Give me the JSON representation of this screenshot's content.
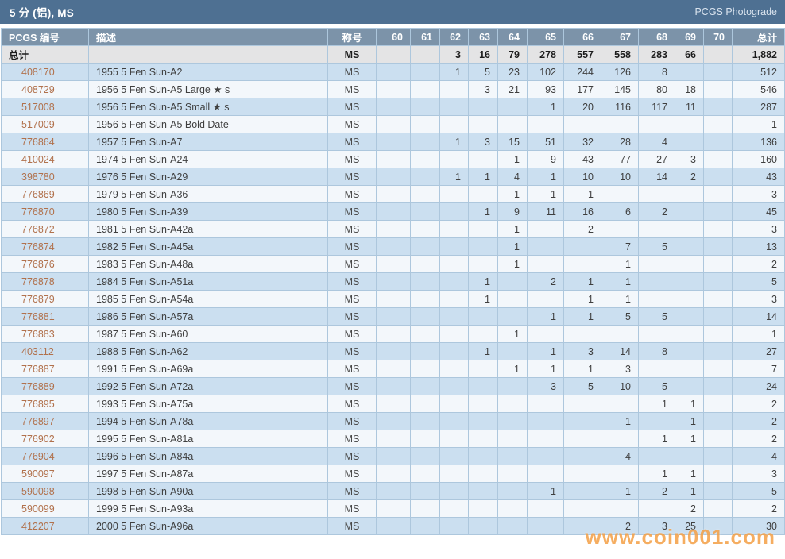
{
  "title_bar": {
    "title": "5 分 (铝), MS",
    "link": "PCGS Photograde"
  },
  "watermark": "www.coin001.com",
  "colors": {
    "title-bg": "#4e7092",
    "header-bg": "#7c93a9",
    "row-odd": "#cbdff0",
    "row-even": "#f3f7fb",
    "totals-bg": "#e4e4e5",
    "grid-border": "#adc7dd",
    "pcgs-link": "#b1714c",
    "watermark": "rgba(243,153,56,0.80)"
  },
  "table": {
    "columns": [
      "PCGS 编号",
      "描述",
      "称号",
      "60",
      "61",
      "62",
      "63",
      "64",
      "65",
      "66",
      "67",
      "68",
      "69",
      "70",
      "总计"
    ],
    "totals": {
      "label": "总计",
      "designation": "MS",
      "grades": [
        "",
        "",
        "3",
        "16",
        "79",
        "278",
        "557",
        "558",
        "283",
        "66",
        ""
      ],
      "total": "1,882"
    },
    "rows": [
      {
        "pcgs": "408170",
        "desc": "1955 5 Fen Sun-A2",
        "designation": "MS",
        "grades": [
          "",
          "",
          "1",
          "5",
          "23",
          "102",
          "244",
          "126",
          "8",
          "",
          ""
        ],
        "total": "512"
      },
      {
        "pcgs": "408729",
        "desc": "1956 5 Fen Sun-A5 Large ★ s",
        "designation": "MS",
        "grades": [
          "",
          "",
          "",
          "3",
          "21",
          "93",
          "177",
          "145",
          "80",
          "18",
          ""
        ],
        "total": "546"
      },
      {
        "pcgs": "517008",
        "desc": "1956 5 Fen Sun-A5 Small ★ s",
        "designation": "MS",
        "grades": [
          "",
          "",
          "",
          "",
          "",
          "1",
          "20",
          "116",
          "117",
          "11",
          ""
        ],
        "total": "287"
      },
      {
        "pcgs": "517009",
        "desc": "1956 5 Fen Sun-A5 Bold Date",
        "designation": "MS",
        "grades": [
          "",
          "",
          "",
          "",
          "",
          "",
          "",
          "",
          "",
          "",
          ""
        ],
        "total": "1"
      },
      {
        "pcgs": "776864",
        "desc": "1957 5 Fen Sun-A7",
        "designation": "MS",
        "grades": [
          "",
          "",
          "1",
          "3",
          "15",
          "51",
          "32",
          "28",
          "4",
          "",
          ""
        ],
        "total": "136"
      },
      {
        "pcgs": "410024",
        "desc": "1974 5 Fen Sun-A24",
        "designation": "MS",
        "grades": [
          "",
          "",
          "",
          "",
          "1",
          "9",
          "43",
          "77",
          "27",
          "3",
          ""
        ],
        "total": "160"
      },
      {
        "pcgs": "398780",
        "desc": "1976 5 Fen Sun-A29",
        "designation": "MS",
        "grades": [
          "",
          "",
          "1",
          "1",
          "4",
          "1",
          "10",
          "10",
          "14",
          "2",
          ""
        ],
        "total": "43"
      },
      {
        "pcgs": "776869",
        "desc": "1979 5 Fen Sun-A36",
        "designation": "MS",
        "grades": [
          "",
          "",
          "",
          "",
          "1",
          "1",
          "1",
          "",
          "",
          "",
          ""
        ],
        "total": "3"
      },
      {
        "pcgs": "776870",
        "desc": "1980 5 Fen Sun-A39",
        "designation": "MS",
        "grades": [
          "",
          "",
          "",
          "1",
          "9",
          "11",
          "16",
          "6",
          "2",
          "",
          ""
        ],
        "total": "45"
      },
      {
        "pcgs": "776872",
        "desc": "1981 5 Fen Sun-A42a",
        "designation": "MS",
        "grades": [
          "",
          "",
          "",
          "",
          "1",
          "",
          "2",
          "",
          "",
          "",
          ""
        ],
        "total": "3"
      },
      {
        "pcgs": "776874",
        "desc": "1982 5 Fen Sun-A45a",
        "designation": "MS",
        "grades": [
          "",
          "",
          "",
          "",
          "1",
          "",
          "",
          "7",
          "5",
          "",
          ""
        ],
        "total": "13"
      },
      {
        "pcgs": "776876",
        "desc": "1983 5 Fen Sun-A48a",
        "designation": "MS",
        "grades": [
          "",
          "",
          "",
          "",
          "1",
          "",
          "",
          "1",
          "",
          "",
          ""
        ],
        "total": "2"
      },
      {
        "pcgs": "776878",
        "desc": "1984 5 Fen Sun-A51a",
        "designation": "MS",
        "grades": [
          "",
          "",
          "",
          "1",
          "",
          "2",
          "1",
          "1",
          "",
          "",
          ""
        ],
        "total": "5"
      },
      {
        "pcgs": "776879",
        "desc": "1985 5 Fen Sun-A54a",
        "designation": "MS",
        "grades": [
          "",
          "",
          "",
          "1",
          "",
          "",
          "1",
          "1",
          "",
          "",
          ""
        ],
        "total": "3"
      },
      {
        "pcgs": "776881",
        "desc": "1986 5 Fen Sun-A57a",
        "designation": "MS",
        "grades": [
          "",
          "",
          "",
          "",
          "",
          "1",
          "1",
          "5",
          "5",
          "",
          ""
        ],
        "total": "14"
      },
      {
        "pcgs": "776883",
        "desc": "1987 5 Fen Sun-A60",
        "designation": "MS",
        "grades": [
          "",
          "",
          "",
          "",
          "1",
          "",
          "",
          "",
          "",
          "",
          ""
        ],
        "total": "1"
      },
      {
        "pcgs": "403112",
        "desc": "1988 5 Fen Sun-A62",
        "designation": "MS",
        "grades": [
          "",
          "",
          "",
          "1",
          "",
          "1",
          "3",
          "14",
          "8",
          "",
          ""
        ],
        "total": "27"
      },
      {
        "pcgs": "776887",
        "desc": "1991 5 Fen Sun-A69a",
        "designation": "MS",
        "grades": [
          "",
          "",
          "",
          "",
          "1",
          "1",
          "1",
          "3",
          "",
          "",
          ""
        ],
        "total": "7"
      },
      {
        "pcgs": "776889",
        "desc": "1992 5 Fen Sun-A72a",
        "designation": "MS",
        "grades": [
          "",
          "",
          "",
          "",
          "",
          "3",
          "5",
          "10",
          "5",
          "",
          ""
        ],
        "total": "24"
      },
      {
        "pcgs": "776895",
        "desc": "1993 5 Fen Sun-A75a",
        "designation": "MS",
        "grades": [
          "",
          "",
          "",
          "",
          "",
          "",
          "",
          "",
          "1",
          "1",
          ""
        ],
        "total": "2"
      },
      {
        "pcgs": "776897",
        "desc": "1994 5 Fen Sun-A78a",
        "designation": "MS",
        "grades": [
          "",
          "",
          "",
          "",
          "",
          "",
          "",
          "1",
          "",
          "1",
          ""
        ],
        "total": "2"
      },
      {
        "pcgs": "776902",
        "desc": "1995 5 Fen Sun-A81a",
        "designation": "MS",
        "grades": [
          "",
          "",
          "",
          "",
          "",
          "",
          "",
          "",
          "1",
          "1",
          ""
        ],
        "total": "2"
      },
      {
        "pcgs": "776904",
        "desc": "1996 5 Fen Sun-A84a",
        "designation": "MS",
        "grades": [
          "",
          "",
          "",
          "",
          "",
          "",
          "",
          "4",
          "",
          "",
          ""
        ],
        "total": "4"
      },
      {
        "pcgs": "590097",
        "desc": "1997 5 Fen Sun-A87a",
        "designation": "MS",
        "grades": [
          "",
          "",
          "",
          "",
          "",
          "",
          "",
          "",
          "1",
          "1",
          ""
        ],
        "total": "3"
      },
      {
        "pcgs": "590098",
        "desc": "1998 5 Fen Sun-A90a",
        "designation": "MS",
        "grades": [
          "",
          "",
          "",
          "",
          "",
          "1",
          "",
          "1",
          "2",
          "1",
          ""
        ],
        "total": "5"
      },
      {
        "pcgs": "590099",
        "desc": "1999 5 Fen Sun-A93a",
        "designation": "MS",
        "grades": [
          "",
          "",
          "",
          "",
          "",
          "",
          "",
          "",
          "",
          "2",
          ""
        ],
        "total": "2"
      },
      {
        "pcgs": "412207",
        "desc": "2000 5 Fen Sun-A96a",
        "designation": "MS",
        "grades": [
          "",
          "",
          "",
          "",
          "",
          "",
          "",
          "2",
          "3",
          "25",
          ""
        ],
        "total": "30"
      }
    ]
  }
}
